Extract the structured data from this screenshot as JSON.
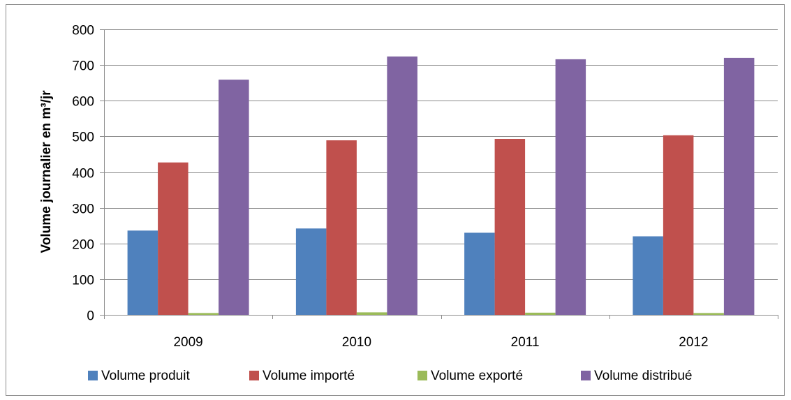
{
  "chart_data": {
    "type": "bar",
    "title": "",
    "xlabel": "",
    "ylabel": "Volume journalier en m³/jr",
    "ylim": [
      0,
      800
    ],
    "yticks": [
      0,
      100,
      200,
      300,
      400,
      500,
      600,
      700,
      800
    ],
    "grid": true,
    "legend_position": "bottom",
    "categories": [
      "2009",
      "2010",
      "2011",
      "2012"
    ],
    "series": [
      {
        "name": "Volume produit",
        "color": "#4f81bd",
        "values": [
          236,
          242,
          230,
          220
        ]
      },
      {
        "name": "Volume importé",
        "color": "#c0504d",
        "values": [
          427,
          489,
          493,
          503
        ]
      },
      {
        "name": "Volume exporté",
        "color": "#9bbb59",
        "values": [
          5,
          7,
          6,
          5
        ]
      },
      {
        "name": "Volume distribué",
        "color": "#8064a2",
        "values": [
          659,
          724,
          716,
          720
        ]
      }
    ]
  }
}
